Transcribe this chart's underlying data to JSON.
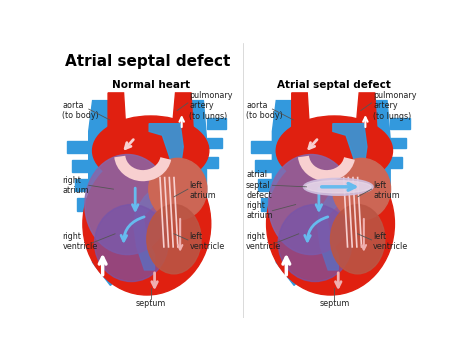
{
  "title": "Atrial septal defect",
  "subtitle_left": "Normal heart",
  "subtitle_right": "Atrial septal defect",
  "bg_color": "#ffffff",
  "red_bright": "#e02010",
  "red_dark": "#c01808",
  "blue_main": "#3399dd",
  "blue_light": "#66bbee",
  "blue_pale": "#aaddf8",
  "purple_dark": "#8866aa",
  "purple_mid": "#aa88bb",
  "purple_light": "#cc99cc",
  "pink_light": "#f0b0b0",
  "pink_pale": "#f8d0d0",
  "defect_color": "#d0c0e0",
  "white": "#ffffff",
  "label_color": "#333333",
  "line_color": "#555555"
}
